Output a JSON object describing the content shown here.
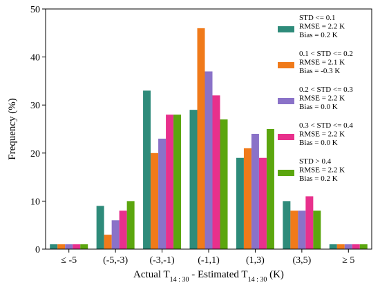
{
  "chart_data": {
    "type": "bar",
    "xlabel_main": "Actual T",
    "xlabel_sub": "14 : 30",
    "xlabel_mid": " - Estimated T",
    "xlabel_sub2": "14 : 30",
    "xlabel_end": " (K)",
    "ylabel": "Frequency (%)",
    "ylim": [
      0,
      50
    ],
    "yticks": [
      "0",
      "10",
      "20",
      "30",
      "40",
      "50"
    ],
    "categories": [
      "≤ -5",
      "(-5,-3)",
      "(-3,-1)",
      "(-1,1)",
      "(1,3)",
      "(3,5)",
      "≥ 5"
    ],
    "legend_position": "upper right",
    "series": [
      {
        "lines": [
          "STD <= 0.1",
          "RMSE = 2.2 K",
          "Bias = 0.2 K"
        ],
        "color": "#2e8b7a",
        "values": [
          1,
          9,
          33,
          29,
          19,
          10,
          1
        ]
      },
      {
        "lines": [
          "0.1 < STD <= 0.2",
          "RMSE = 2.1 K",
          "Bias = -0.3 K"
        ],
        "color": "#f07a1a",
        "values": [
          1,
          3,
          20,
          46,
          21,
          8,
          1
        ]
      },
      {
        "lines": [
          "0.2 < STD <= 0.3",
          "RMSE = 2.2 K",
          "Bias = 0.0 K"
        ],
        "color": "#8a72c8",
        "values": [
          1,
          6,
          23,
          37,
          24,
          8,
          1
        ]
      },
      {
        "lines": [
          "0.3 < STD <= 0.4",
          "RMSE = 2.2 K",
          "Bias = 0.0 K"
        ],
        "color": "#e8308c",
        "values": [
          1,
          8,
          28,
          32,
          19,
          11,
          1
        ]
      },
      {
        "lines": [
          "STD > 0.4",
          "RMSE = 2.2 K",
          "Bias = 0.2 K"
        ],
        "color": "#5ba60e",
        "values": [
          1,
          10,
          28,
          27,
          25,
          8,
          1
        ]
      }
    ]
  }
}
